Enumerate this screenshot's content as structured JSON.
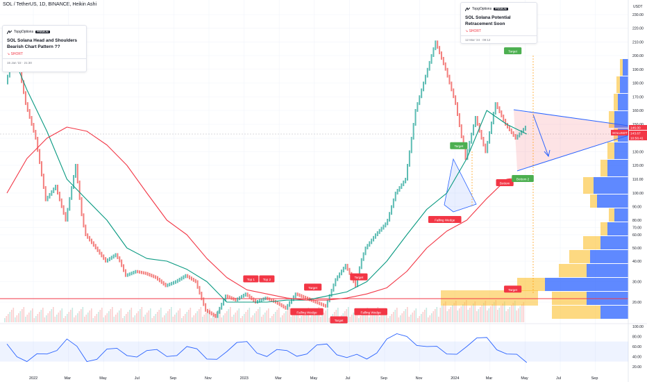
{
  "header": {
    "ticker": "SOL / TetherUS, 1D, BINANCE, Heikin Ashi"
  },
  "ideas": [
    {
      "author": "TopgOptions",
      "badge": "PREMIUM",
      "title": "SOL Solana Head and Shoulders Bearish Chart Pattern ??",
      "side": "SHORT",
      "date": "15 Jan '22 · 21:30"
    },
    {
      "author": "TopgOptions",
      "badge": "PREMIUM",
      "title": "SOL Solana Potential Retracement Soon",
      "side": "SHORT",
      "date": "12 Mar '24 · 09:12"
    }
  ],
  "colors": {
    "up": "#26a69a",
    "down": "#ef5350",
    "ma_short": "#089981",
    "ma_long": "#f23645",
    "triangle": "#2962ff",
    "rsi": "#2962ff",
    "volume_profile_up": "#fbc02d",
    "volume_profile_down": "#2962ff",
    "label_red": "#f23645",
    "label_green": "#4caf50"
  },
  "chart_data": [
    {
      "type": "line",
      "title": "SOL / TetherUS, 1D, BINANCE, Heikin Ashi",
      "currency": "USDT",
      "x_ticks": [
        "2022",
        "Mar",
        "May",
        "Jul",
        "Sep",
        "Nov",
        "2023",
        "Mar",
        "May",
        "Jul",
        "Sep",
        "Nov",
        "2024",
        "Mar",
        "May",
        "Jul",
        "Sep"
      ],
      "y_ticks": [
        20.0,
        30.0,
        40.0,
        50.0,
        60.0,
        70.0,
        80.0,
        90.0,
        100.0,
        110.0,
        120.0,
        130.0,
        140.0,
        150.0,
        160.0,
        170.0,
        180.0,
        190.0,
        200.0,
        210.0,
        220.0,
        230.0
      ],
      "ylim": [
        10,
        236
      ],
      "xlim": [
        0,
        31
      ],
      "current_price": {
        "label": "SOLUSDT",
        "value": "143.67",
        "countdown": "10:56:41",
        "level": "146.00"
      },
      "series": [
        {
          "name": "",
          "role": "price",
          "x": [
            0,
            0.5,
            1,
            1.5,
            2,
            2.5,
            3,
            3.5,
            4,
            4.5,
            5,
            5.5,
            6,
            6.5,
            7,
            7.5,
            8,
            8.5,
            9,
            9.5,
            10,
            10.5,
            11,
            11.5,
            12,
            12.5,
            13,
            13.5,
            14,
            14.5,
            15,
            15.5,
            16,
            16.5,
            17,
            17.5,
            18,
            18.5,
            19,
            19.5,
            20,
            20.5,
            21,
            21.5,
            22,
            22.5,
            23,
            23.5,
            24,
            24.5,
            25,
            25.5,
            26
          ],
          "values": [
            180,
            205,
            165,
            140,
            95,
            105,
            80,
            120,
            60,
            50,
            40,
            45,
            33,
            35,
            34,
            32,
            28,
            30,
            33,
            30,
            16,
            13,
            23,
            21,
            24,
            20,
            22,
            20,
            17,
            24,
            22,
            20,
            18,
            31,
            38,
            28,
            50,
            60,
            75,
            100,
            110,
            160,
            185,
            210,
            190,
            165,
            125,
            155,
            130,
            165,
            150,
            140,
            148
          ]
        },
        {
          "name": "",
          "role": "ma_short",
          "x": [
            0,
            1,
            2,
            3,
            4,
            5,
            6,
            7,
            8,
            9,
            10,
            11,
            12,
            13,
            14,
            15,
            16,
            17,
            18,
            19,
            20,
            21,
            22,
            23,
            24,
            25,
            26
          ],
          "values": [
            210,
            175,
            145,
            110,
            95,
            80,
            50,
            42,
            40,
            36,
            30,
            20,
            20,
            20,
            21,
            21,
            23,
            25,
            30,
            40,
            60,
            88,
            100,
            125,
            160,
            150,
            143
          ]
        },
        {
          "name": "",
          "role": "ma_long",
          "x": [
            0,
            1,
            2,
            3,
            4,
            5,
            6,
            7,
            8,
            9,
            10,
            11,
            12,
            13,
            14,
            15,
            16,
            17,
            18,
            19,
            20,
            21,
            22,
            23,
            24,
            25,
            26
          ],
          "values": [
            100,
            125,
            140,
            148,
            145,
            135,
            120,
            100,
            80,
            60,
            42,
            32,
            26,
            24,
            22,
            21,
            21,
            22,
            24,
            27,
            35,
            50,
            65,
            80,
            96,
            110,
            112
          ]
        }
      ],
      "annotations": [
        {
          "text": "Top 1",
          "x": 12.2,
          "y": 31
        },
        {
          "text": "Top 2",
          "x": 13,
          "y": 31
        },
        {
          "text": "Target",
          "x": 15.3,
          "y": 27
        },
        {
          "text": "Target",
          "x": 17.6,
          "y": 32
        },
        {
          "text": "Falling Wedge",
          "x": 15,
          "y": 15
        },
        {
          "text": "Target",
          "x": 16.6,
          "y": 11
        },
        {
          "text": "Falling Wedge",
          "x": 18.2,
          "y": 15
        },
        {
          "text": "Target",
          "x": 22.6,
          "y": 134
        },
        {
          "text": "Falling Wedge",
          "x": 21.9,
          "y": 80
        },
        {
          "text": "Target",
          "x": 25.3,
          "y": 203
        },
        {
          "text": "Bottom",
          "x": 24.9,
          "y": 107
        },
        {
          "text": "Bottom 2",
          "x": 25.8,
          "y": 110
        },
        {
          "text": "Target",
          "x": 25.3,
          "y": 26
        }
      ]
    },
    {
      "type": "line",
      "title": "",
      "y_ticks": [
        20.0,
        40.0,
        60.0,
        80.0,
        100.0
      ],
      "ylim": [
        10,
        100
      ],
      "series": [
        {
          "name": "",
          "role": "rsi",
          "x": [
            0,
            1,
            2,
            3,
            4,
            5,
            6,
            7,
            8,
            9,
            10,
            11,
            12,
            13,
            14,
            15,
            16,
            17,
            18,
            19,
            20,
            21,
            22,
            23,
            24,
            25,
            26
          ],
          "values": [
            65,
            30,
            45,
            75,
            30,
            55,
            42,
            52,
            40,
            60,
            35,
            50,
            70,
            40,
            52,
            45,
            65,
            38,
            35,
            75,
            80,
            60,
            45,
            60,
            78,
            45,
            28
          ]
        }
      ]
    }
  ]
}
